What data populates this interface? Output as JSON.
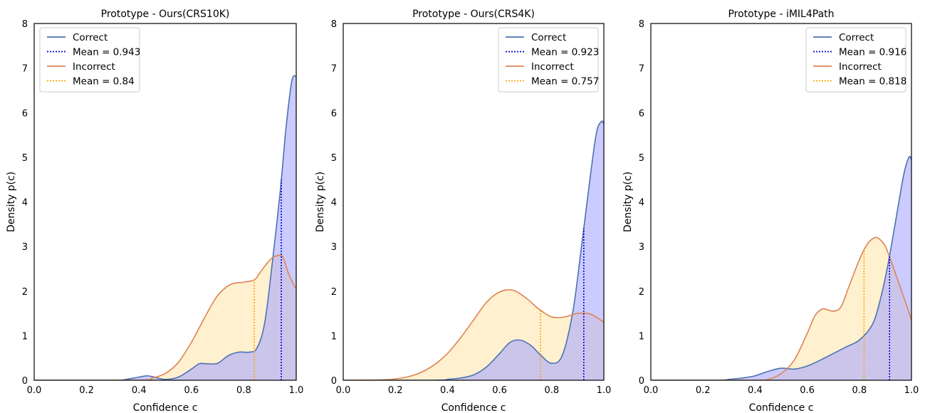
{
  "chart_data": [
    {
      "type": "area",
      "title": "Prototype - Ours(CRS10K)",
      "xlabel": "Confidence c",
      "ylabel": "Density p(c)",
      "xlim": [
        0.0,
        1.0
      ],
      "ylim": [
        0,
        8
      ],
      "xticks": [
        "0.0",
        "0.2",
        "0.4",
        "0.6",
        "0.8",
        "1.0"
      ],
      "yticks": [
        "0",
        "1",
        "2",
        "3",
        "4",
        "5",
        "6",
        "7",
        "8"
      ],
      "grid": false,
      "legend_position": "top-left",
      "legend": [
        "Correct",
        "Mean = 0.943",
        "Incorrect",
        "Mean = 0.84"
      ],
      "series": [
        {
          "name": "Correct",
          "color": "#4c72b0",
          "fill": "#a8a8ff",
          "mean": 0.943,
          "mean_color": "#0000d0",
          "x": [
            0.0,
            0.3,
            0.35,
            0.4,
            0.43,
            0.46,
            0.5,
            0.55,
            0.6,
            0.63,
            0.66,
            0.7,
            0.74,
            0.78,
            0.82,
            0.85,
            0.88,
            0.91,
            0.94,
            0.96,
            0.98,
            0.99,
            1.0
          ],
          "y": [
            0.0,
            0.0,
            0.02,
            0.07,
            0.1,
            0.07,
            0.02,
            0.07,
            0.25,
            0.37,
            0.37,
            0.38,
            0.55,
            0.63,
            0.63,
            0.72,
            1.3,
            2.7,
            4.3,
            5.6,
            6.6,
            6.82,
            6.8
          ]
        },
        {
          "name": "Incorrect",
          "color": "#dd8452",
          "fill": "#ffe6b0",
          "mean": 0.84,
          "mean_color": "#ffa500",
          "x": [
            0.0,
            0.4,
            0.45,
            0.5,
            0.55,
            0.6,
            0.65,
            0.7,
            0.75,
            0.8,
            0.84,
            0.86,
            0.9,
            0.93,
            0.95,
            0.97,
            0.99,
            1.0
          ],
          "y": [
            0.0,
            0.0,
            0.05,
            0.15,
            0.4,
            0.85,
            1.4,
            1.9,
            2.15,
            2.2,
            2.25,
            2.4,
            2.7,
            2.8,
            2.75,
            2.4,
            2.15,
            2.05
          ]
        }
      ]
    },
    {
      "type": "area",
      "title": "Prototype - Ours(CRS4K)",
      "xlabel": "Confidence c",
      "ylabel": "Density p(c)",
      "xlim": [
        0.0,
        1.0
      ],
      "ylim": [
        0,
        8
      ],
      "xticks": [
        "0.0",
        "0.2",
        "0.4",
        "0.6",
        "0.8",
        "1.0"
      ],
      "yticks": [
        "0",
        "1",
        "2",
        "3",
        "4",
        "5",
        "6",
        "7",
        "8"
      ],
      "grid": false,
      "legend_position": "top-right",
      "legend": [
        "Correct",
        "Mean = 0.923",
        "Incorrect",
        "Mean = 0.757"
      ],
      "series": [
        {
          "name": "Correct",
          "color": "#4c72b0",
          "fill": "#a8a8ff",
          "mean": 0.923,
          "mean_color": "#0000d0",
          "x": [
            0.0,
            0.35,
            0.4,
            0.45,
            0.5,
            0.55,
            0.6,
            0.64,
            0.68,
            0.72,
            0.76,
            0.8,
            0.84,
            0.88,
            0.91,
            0.94,
            0.97,
            0.99,
            1.0
          ],
          "y": [
            0.0,
            0.0,
            0.02,
            0.05,
            0.12,
            0.3,
            0.6,
            0.85,
            0.9,
            0.78,
            0.55,
            0.38,
            0.55,
            1.5,
            2.8,
            4.2,
            5.5,
            5.8,
            5.75
          ]
        },
        {
          "name": "Incorrect",
          "color": "#dd8452",
          "fill": "#ffe6b0",
          "mean": 0.757,
          "mean_color": "#ffa500",
          "x": [
            0.0,
            0.15,
            0.2,
            0.25,
            0.3,
            0.35,
            0.4,
            0.45,
            0.5,
            0.55,
            0.6,
            0.65,
            0.7,
            0.75,
            0.8,
            0.85,
            0.9,
            0.95,
            1.0
          ],
          "y": [
            0.0,
            0.01,
            0.03,
            0.08,
            0.18,
            0.35,
            0.6,
            0.95,
            1.35,
            1.75,
            1.98,
            2.02,
            1.85,
            1.6,
            1.42,
            1.42,
            1.5,
            1.48,
            1.3
          ]
        }
      ]
    },
    {
      "type": "area",
      "title": "Prototype - iMIL4Path",
      "xlabel": "Confidence c",
      "ylabel": "Density p(c)",
      "xlim": [
        0.0,
        1.0
      ],
      "ylim": [
        0,
        8
      ],
      "xticks": [
        "0.0",
        "0.2",
        "0.4",
        "0.6",
        "0.8",
        "1.0"
      ],
      "yticks": [
        "0",
        "1",
        "2",
        "3",
        "4",
        "5",
        "6",
        "7",
        "8"
      ],
      "grid": false,
      "legend_position": "top-right",
      "legend": [
        "Correct",
        "Mean = 0.916",
        "Incorrect",
        "Mean = 0.818"
      ],
      "series": [
        {
          "name": "Correct",
          "color": "#4c72b0",
          "fill": "#a8a8ff",
          "mean": 0.916,
          "mean_color": "#0000d0",
          "x": [
            0.0,
            0.25,
            0.3,
            0.35,
            0.4,
            0.45,
            0.5,
            0.55,
            0.6,
            0.65,
            0.7,
            0.75,
            0.8,
            0.85,
            0.88,
            0.91,
            0.94,
            0.97,
            0.99,
            1.0
          ],
          "y": [
            0.0,
            0.0,
            0.02,
            0.05,
            0.1,
            0.2,
            0.27,
            0.25,
            0.32,
            0.45,
            0.6,
            0.75,
            0.9,
            1.25,
            1.8,
            2.6,
            3.6,
            4.6,
            5.0,
            4.95
          ]
        },
        {
          "name": "Incorrect",
          "color": "#dd8452",
          "fill": "#ffe6b0",
          "mean": 0.818,
          "mean_color": "#ffa500",
          "x": [
            0.0,
            0.4,
            0.45,
            0.5,
            0.55,
            0.6,
            0.63,
            0.66,
            0.7,
            0.73,
            0.76,
            0.8,
            0.83,
            0.86,
            0.88,
            0.9,
            0.92,
            0.95,
            0.98,
            1.0
          ],
          "y": [
            0.0,
            0.0,
            0.02,
            0.15,
            0.45,
            1.05,
            1.45,
            1.6,
            1.55,
            1.65,
            2.1,
            2.7,
            3.05,
            3.2,
            3.15,
            3.0,
            2.7,
            2.2,
            1.7,
            1.35
          ]
        }
      ]
    }
  ]
}
